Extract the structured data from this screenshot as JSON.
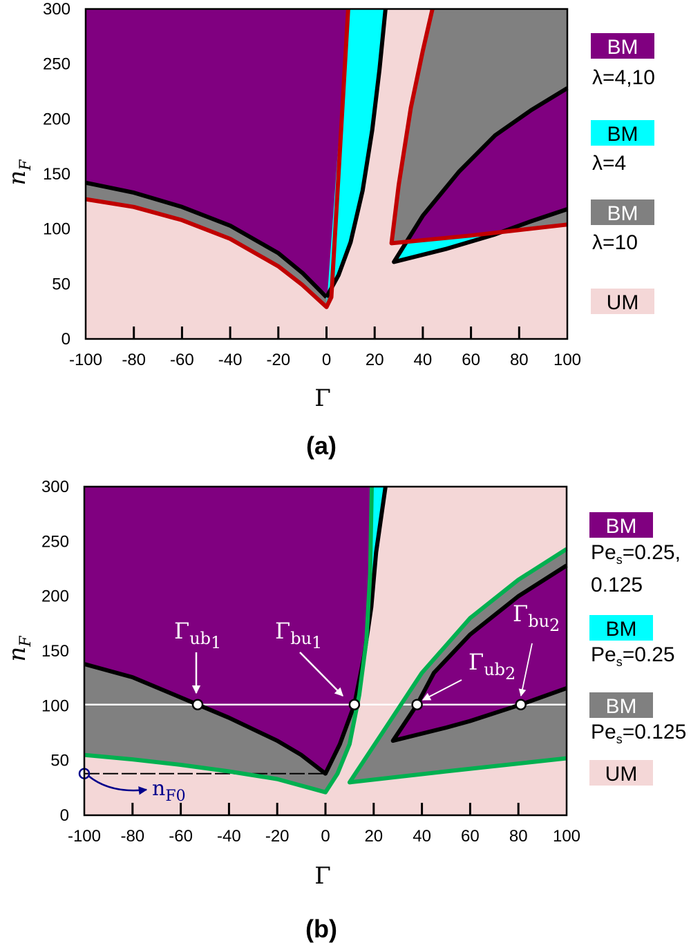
{
  "colors": {
    "purple": "#800080",
    "cyan": "#00FFFF",
    "gray": "#808080",
    "pink": "#F4D7D7",
    "red": "#C00000",
    "green": "#00B050",
    "black": "#000000",
    "navy": "#00008B"
  },
  "chart_data": [
    {
      "type": "area",
      "panel_label": "(a)",
      "xlabel": "Γ",
      "ylabel": {
        "main": "n",
        "sub": "F"
      },
      "xlim": [
        -100,
        100
      ],
      "ylim": [
        0,
        300
      ],
      "xticks": [
        "-100",
        "-80",
        "-60",
        "-40",
        "-20",
        "0",
        "20",
        "40",
        "60",
        "80",
        "100"
      ],
      "yticks": [
        "0",
        "50",
        "100",
        "150",
        "200",
        "250",
        "300"
      ],
      "legend": [
        {
          "box": "BM",
          "fill": "purple",
          "text_color": "#ffffff",
          "desc": [
            {
              "main": "λ=4,10"
            }
          ]
        },
        {
          "box": "BM",
          "fill": "cyan",
          "text_color": "#000000",
          "desc": [
            {
              "main": "λ=4"
            }
          ]
        },
        {
          "box": "BM",
          "fill": "gray",
          "text_color": "#ffffff",
          "desc": [
            {
              "main": "λ=10"
            }
          ]
        },
        {
          "box": "UM",
          "fill": "pink",
          "text_color": "#000000",
          "desc": []
        }
      ],
      "regions": [
        {
          "name": "region-bm-gray-left",
          "fill": "gray",
          "points": [
            [
              -100,
              300
            ],
            [
              9,
              300
            ],
            [
              2,
              38
            ],
            [
              0,
              29
            ],
            [
              -10,
              49
            ],
            [
              -20,
              66
            ],
            [
              -40,
              91
            ],
            [
              -60,
              108
            ],
            [
              -80,
              120
            ],
            [
              -100,
              127
            ]
          ]
        },
        {
          "name": "region-bm-purple-left",
          "fill": "purple",
          "points": [
            [
              -100,
              300
            ],
            [
              9,
              300
            ],
            [
              1.7,
              38
            ],
            [
              -10,
              60
            ],
            [
              -20,
              78
            ],
            [
              -40,
              103
            ],
            [
              -60,
              120
            ],
            [
              -80,
              133
            ],
            [
              -100,
              142
            ]
          ]
        },
        {
          "name": "region-bm-cyan-left",
          "fill": "cyan",
          "points": [
            [
              0,
              29
            ],
            [
              9,
              300
            ],
            [
              24.5,
              300
            ],
            [
              22,
              245
            ],
            [
              19,
              190
            ],
            [
              15,
              135
            ],
            [
              10,
              88
            ],
            [
              5,
              58
            ],
            [
              0,
              38
            ]
          ]
        },
        {
          "name": "region-bm-gray-right",
          "fill": "gray",
          "points": [
            [
              27,
              87
            ],
            [
              30,
              140
            ],
            [
              35,
              210
            ],
            [
              40,
              262
            ],
            [
              44,
              300
            ],
            [
              100,
              300
            ],
            [
              100,
              104
            ],
            [
              60,
              94
            ]
          ]
        },
        {
          "name": "region-bm-cyan-right",
          "fill": "cyan",
          "points": [
            [
              28,
              70
            ],
            [
              40,
              112
            ],
            [
              55,
              152
            ],
            [
              70,
              185
            ],
            [
              85,
              208
            ],
            [
              100,
              228
            ],
            [
              100,
              118
            ],
            [
              85,
              107
            ],
            [
              70,
              95
            ],
            [
              50,
              82
            ]
          ]
        },
        {
          "name": "region-bm-purple-right",
          "fill": "purple",
          "points": [
            [
              33,
              88
            ],
            [
              40,
              112
            ],
            [
              55,
              152
            ],
            [
              70,
              185
            ],
            [
              85,
              208
            ],
            [
              100,
              228
            ],
            [
              100,
              118
            ],
            [
              85,
              107
            ],
            [
              74,
              97.6
            ],
            [
              60,
              94
            ]
          ]
        },
        {
          "name": "region-bm-gray-right-small",
          "fill": "gray",
          "points": [
            [
              74,
              97.6
            ],
            [
              85,
              107
            ],
            [
              100,
              118
            ],
            [
              100,
              104
            ]
          ]
        }
      ],
      "curves": [
        {
          "name": "boundary-black-left",
          "color": "black",
          "points": [
            [
              -100,
              142
            ],
            [
              -80,
              133
            ],
            [
              -60,
              120
            ],
            [
              -40,
              103
            ],
            [
              -20,
              78
            ],
            [
              -10,
              60
            ],
            [
              0,
              38
            ]
          ]
        },
        {
          "name": "boundary-black-right",
          "color": "black",
          "points": [
            [
              0,
              38
            ],
            [
              5,
              58
            ],
            [
              10,
              88
            ],
            [
              15,
              135
            ],
            [
              19,
              190
            ],
            [
              22,
              245
            ],
            [
              24.5,
              300
            ]
          ]
        },
        {
          "name": "boundary-black-v",
          "color": "black",
          "points": [
            [
              100,
              228
            ],
            [
              85,
              208
            ],
            [
              70,
              185
            ],
            [
              55,
              152
            ],
            [
              40,
              112
            ],
            [
              28,
              70
            ],
            [
              50,
              82
            ],
            [
              70,
              95
            ],
            [
              85,
              107
            ],
            [
              100,
              118
            ]
          ]
        },
        {
          "name": "boundary-red-left",
          "color": "red",
          "points": [
            [
              -100,
              127
            ],
            [
              -80,
              120
            ],
            [
              -60,
              108
            ],
            [
              -40,
              91
            ],
            [
              -20,
              66
            ],
            [
              -10,
              49
            ],
            [
              0,
              29
            ],
            [
              2,
              38
            ],
            [
              9,
              300
            ]
          ]
        },
        {
          "name": "boundary-red-v",
          "color": "red",
          "points": [
            [
              44,
              300
            ],
            [
              40,
              262
            ],
            [
              35,
              210
            ],
            [
              30,
              140
            ],
            [
              27,
              87
            ],
            [
              60,
              94
            ],
            [
              100,
              104
            ]
          ]
        }
      ]
    },
    {
      "type": "area",
      "panel_label": "(b)",
      "xlabel": "Γ",
      "ylabel": {
        "main": "n",
        "sub": "F"
      },
      "xlim": [
        -100,
        100
      ],
      "ylim": [
        0,
        300
      ],
      "xticks": [
        "-100",
        "-80",
        "-60",
        "-40",
        "-20",
        "0",
        "20",
        "40",
        "60",
        "80",
        "100"
      ],
      "yticks": [
        "0",
        "50",
        "100",
        "150",
        "200",
        "250",
        "300"
      ],
      "legend": [
        {
          "box": "BM",
          "fill": "purple",
          "text_color": "#ffffff",
          "desc": [
            {
              "main": "Pe",
              "sub": "s",
              "rest": "=0.25,"
            },
            {
              "main": "0.125"
            }
          ]
        },
        {
          "box": "BM",
          "fill": "cyan",
          "text_color": "#000000",
          "desc": [
            {
              "main": "Pe",
              "sub": "s",
              "rest": "=0.25"
            }
          ]
        },
        {
          "box": "BM",
          "fill": "gray",
          "text_color": "#ffffff",
          "desc": [
            {
              "main": "Pe",
              "sub": "s",
              "rest": "=0.125"
            }
          ]
        },
        {
          "box": "UM",
          "fill": "pink",
          "text_color": "#000000",
          "desc": []
        }
      ],
      "regions": [
        {
          "name": "region-bm-gray-left",
          "fill": "gray",
          "points": [
            [
              -100,
              300
            ],
            [
              19.2,
              300
            ],
            [
              18.5,
              220
            ],
            [
              17,
              160
            ],
            [
              14,
              110
            ],
            [
              10,
              65
            ],
            [
              5,
              38
            ],
            [
              0,
              21
            ],
            [
              -20,
              33
            ],
            [
              -40,
              40
            ],
            [
              -60,
              46
            ],
            [
              -80,
              51
            ],
            [
              -100,
              55
            ]
          ]
        },
        {
          "name": "region-bm-purple-left",
          "fill": "purple",
          "points": [
            [
              -100,
              300
            ],
            [
              24.9,
              300
            ],
            [
              21,
              240
            ],
            [
              19,
              190
            ],
            [
              16,
              145
            ],
            [
              12,
              101
            ],
            [
              6,
              65
            ],
            [
              0,
              38
            ],
            [
              -10,
              55
            ],
            [
              -20,
              68
            ],
            [
              -40,
              89
            ],
            [
              -53,
              101
            ],
            [
              -80,
              126
            ],
            [
              -100,
              138
            ]
          ]
        },
        {
          "name": "region-bm-cyan-left",
          "fill": "cyan",
          "points": [
            [
              17.5,
              165
            ],
            [
              18.5,
              220
            ],
            [
              19.2,
              300
            ],
            [
              24.9,
              300
            ],
            [
              21,
              240
            ],
            [
              19,
              190
            ]
          ]
        },
        {
          "name": "region-bm-gray-right",
          "fill": "gray",
          "points": [
            [
              10,
              30
            ],
            [
              25,
              80
            ],
            [
              40,
              130
            ],
            [
              60,
              180
            ],
            [
              80,
              215
            ],
            [
              100,
              243
            ],
            [
              100,
              52
            ],
            [
              50,
              40
            ]
          ]
        },
        {
          "name": "region-bm-purple-right",
          "fill": "purple",
          "points": [
            [
              28,
              68
            ],
            [
              38,
              101
            ],
            [
              45,
              130
            ],
            [
              60,
              165
            ],
            [
              80,
              200
            ],
            [
              100,
              228
            ],
            [
              100,
              116
            ],
            [
              81,
              101
            ],
            [
              60,
              86
            ],
            [
              50,
              80
            ]
          ]
        }
      ],
      "curves": [
        {
          "name": "boundary-black-left",
          "color": "black",
          "points": [
            [
              -100,
              138
            ],
            [
              -80,
              126
            ],
            [
              -53,
              101
            ],
            [
              -40,
              89
            ],
            [
              -20,
              68
            ],
            [
              -10,
              55
            ],
            [
              0,
              38
            ],
            [
              6,
              65
            ],
            [
              12,
              101
            ],
            [
              16,
              145
            ],
            [
              19,
              190
            ],
            [
              21,
              240
            ],
            [
              24.9,
              300
            ]
          ]
        },
        {
          "name": "boundary-black-v",
          "color": "black",
          "points": [
            [
              100,
              228
            ],
            [
              80,
              200
            ],
            [
              60,
              165
            ],
            [
              45,
              130
            ],
            [
              38,
              101
            ],
            [
              28,
              68
            ],
            [
              50,
              80
            ],
            [
              60,
              86
            ],
            [
              81,
              101
            ],
            [
              100,
              116
            ]
          ]
        },
        {
          "name": "boundary-green-left",
          "color": "green",
          "points": [
            [
              -100,
              55
            ],
            [
              -80,
              51
            ],
            [
              -60,
              46
            ],
            [
              -40,
              40
            ],
            [
              -20,
              33
            ],
            [
              0,
              21
            ],
            [
              5,
              38
            ],
            [
              10,
              65
            ],
            [
              14,
              110
            ],
            [
              17,
              160
            ],
            [
              18.5,
              220
            ],
            [
              19.2,
              300
            ]
          ]
        },
        {
          "name": "boundary-green-v",
          "color": "green",
          "points": [
            [
              100,
              243
            ],
            [
              80,
              215
            ],
            [
              60,
              180
            ],
            [
              40,
              130
            ],
            [
              25,
              80
            ],
            [
              10,
              30
            ],
            [
              50,
              40
            ],
            [
              100,
              52
            ]
          ]
        }
      ],
      "reference_line": {
        "y": 101
      },
      "nF0": {
        "y": 38,
        "label": "n",
        "sub": "F0"
      },
      "markers": [
        {
          "x": -53,
          "y": 101,
          "label": "Γ",
          "sub": "ub",
          "subsub": "1"
        },
        {
          "x": 12,
          "y": 101,
          "label": "Γ",
          "sub": "bu",
          "subsub": "1"
        },
        {
          "x": 38,
          "y": 101,
          "label": "Γ",
          "sub": "ub",
          "subsub": "2"
        },
        {
          "x": 81,
          "y": 101,
          "label": "Γ",
          "sub": "bu",
          "subsub": "2"
        }
      ]
    }
  ]
}
